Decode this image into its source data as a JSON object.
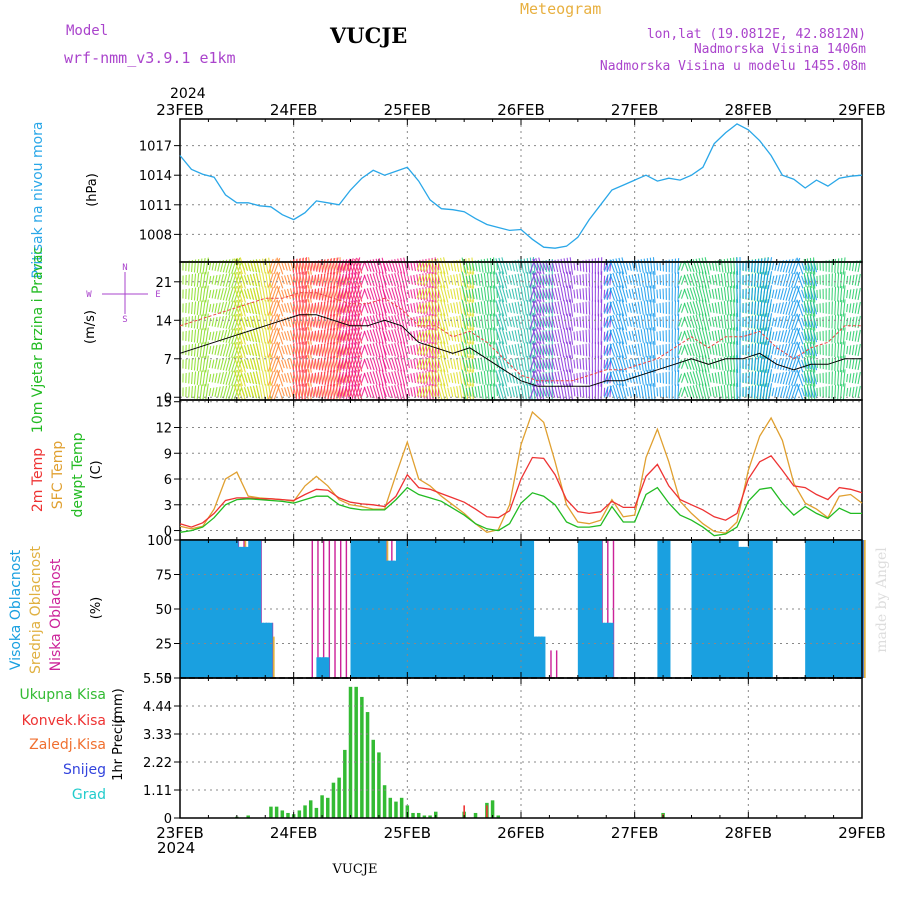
{
  "header": {
    "model_label": "Model",
    "model_name": "wrf-nmm_v3.9.1  e1km",
    "station": "VUCJE",
    "chart_title": "Meteogram",
    "lonlat": "lon,lat (19.0812E, 42.8812N)",
    "elevation": "Nadmorska Visina 1406m",
    "model_elevation": "Nadmorska Visina u modelu 1455.08m",
    "credit": "made by Angel",
    "footer_station": "VUCJE"
  },
  "colors": {
    "pressure": "#2aa7e8",
    "wind_label": "#22bb22",
    "temp2m": "#ee3333",
    "sfc": "#e0a030",
    "dewpt": "#22bb22",
    "high_cloud": "#1aa0e0",
    "mid_cloud": "#e0b040",
    "low_cloud": "#cc2299",
    "total_precip": "#33bb33",
    "conv_precip": "#ee3333",
    "frozen_precip": "#f07030",
    "snow": "#3344dd",
    "hail": "#22cccc",
    "title_purple": "#aa44cc",
    "title_orange": "#e8b040"
  },
  "time_axis": {
    "year_top": "2024",
    "year_bottom": "2024",
    "days": [
      "23FEB",
      "24FEB",
      "25FEB",
      "26FEB",
      "27FEB",
      "28FEB",
      "29FEB"
    ]
  },
  "chart_data": [
    {
      "type": "line",
      "panel": "pressure",
      "ylabel": "Pritisak na nivou mora",
      "unit": "(hPa)",
      "yticks": [
        1008,
        1011,
        1014,
        1017
      ],
      "ylim": [
        1005.2,
        1019.7
      ],
      "grid": true,
      "x_days": [
        0,
        0.1,
        0.2,
        0.3,
        0.4,
        0.5,
        0.6,
        0.7,
        0.8,
        0.9,
        1.0,
        1.1,
        1.2,
        1.3,
        1.4,
        1.5,
        1.6,
        1.7,
        1.8,
        1.9,
        2.0,
        2.1,
        2.2,
        2.3,
        2.4,
        2.5,
        2.6,
        2.7,
        2.8,
        2.9,
        3.0,
        3.1,
        3.2,
        3.3,
        3.4,
        3.5,
        3.6,
        3.7,
        3.8,
        3.9,
        4.0,
        4.1,
        4.2,
        4.3,
        4.4,
        4.5,
        4.6,
        4.7,
        4.8,
        4.9,
        5.0,
        5.1,
        5.2,
        5.3,
        5.4,
        5.5,
        5.6,
        5.7,
        5.8,
        5.9,
        6.0
      ],
      "series": [
        {
          "values": [
            1016.0,
            1014.6,
            1014.1,
            1013.8,
            1012.0,
            1011.2,
            1011.2,
            1010.9,
            1010.8,
            1010.0,
            1009.5,
            1010.2,
            1011.4,
            1011.2,
            1011.0,
            1012.5,
            1013.7,
            1014.5,
            1014.0,
            1014.4,
            1014.8,
            1013.4,
            1011.5,
            1010.6,
            1010.5,
            1010.3,
            1009.6,
            1009.0,
            1008.7,
            1008.4,
            1008.5,
            1007.5,
            1006.7,
            1006.6,
            1006.8,
            1007.7,
            1009.5,
            1011.0,
            1012.5,
            1013.0,
            1013.5,
            1014.0,
            1013.4,
            1013.7,
            1013.5,
            1014.0,
            1014.8,
            1017.2,
            1018.3,
            1019.2,
            1018.6,
            1017.5,
            1016.0,
            1014.0,
            1013.6,
            1012.7,
            1013.5,
            1012.9,
            1013.7,
            1013.9,
            1014.0
          ]
        }
      ]
    },
    {
      "type": "line",
      "panel": "wind",
      "ylabel": "10m Vjetar Brzina i Pravac",
      "unit": "(m/s)",
      "compass": {
        "n": "N",
        "s": "S",
        "e": "E",
        "w": "W"
      },
      "yticks": [
        0,
        7,
        14,
        21
      ],
      "ylim": [
        -0.5,
        24.6
      ],
      "grid": true,
      "x_days": [
        0,
        0.15,
        0.3,
        0.45,
        0.6,
        0.75,
        0.9,
        1.05,
        1.2,
        1.35,
        1.5,
        1.65,
        1.8,
        1.95,
        2.1,
        2.25,
        2.4,
        2.55,
        2.7,
        2.85,
        3.0,
        3.15,
        3.3,
        3.45,
        3.6,
        3.75,
        3.9,
        4.05,
        4.2,
        4.35,
        4.5,
        4.65,
        4.8,
        4.95,
        5.1,
        5.25,
        5.4,
        5.55,
        5.7,
        5.85,
        6.0
      ],
      "series": [
        {
          "name": "mean",
          "values": [
            8,
            9,
            10,
            11,
            12,
            13,
            14,
            15,
            15,
            14,
            13,
            13,
            14,
            13,
            10,
            9,
            8,
            9,
            7,
            5,
            3,
            2,
            2,
            2,
            2,
            3,
            3,
            4,
            5,
            6,
            7,
            6,
            7,
            7,
            8,
            6,
            5,
            6,
            6,
            7,
            7
          ]
        },
        {
          "name": "gust",
          "values": [
            13,
            14,
            15,
            16,
            17,
            18,
            18,
            19,
            19,
            18,
            17,
            17,
            18,
            16,
            13,
            13,
            11,
            12,
            10,
            7,
            4,
            3,
            3,
            3,
            4,
            5,
            5,
            6,
            7,
            9,
            11,
            9,
            11,
            11,
            12,
            9,
            7,
            9,
            10,
            13,
            13
          ]
        }
      ],
      "direction_bands": [
        {
          "from": 0.0,
          "to": 0.7,
          "color": "#88dd22"
        },
        {
          "from": 0.5,
          "to": 0.8,
          "color": "#dddd22"
        },
        {
          "from": 0.8,
          "to": 1.5,
          "color": "#ff8833"
        },
        {
          "from": 1.0,
          "to": 1.6,
          "color": "#ff3355"
        },
        {
          "from": 1.4,
          "to": 1.8,
          "color": "#ee1188"
        },
        {
          "from": 1.8,
          "to": 2.3,
          "color": "#ee1188"
        },
        {
          "from": 2.1,
          "to": 2.6,
          "color": "#dddd22"
        },
        {
          "from": 2.5,
          "to": 2.8,
          "color": "#22cc66"
        },
        {
          "from": 2.8,
          "to": 3.3,
          "color": "#22bbaa"
        },
        {
          "from": 3.1,
          "to": 3.8,
          "color": "#8833dd"
        },
        {
          "from": 3.75,
          "to": 4.4,
          "color": "#1199ee"
        },
        {
          "from": 4.4,
          "to": 5.2,
          "color": "#22cc66"
        },
        {
          "from": 4.9,
          "to": 5.6,
          "color": "#1199ee"
        },
        {
          "from": 5.5,
          "to": 6.0,
          "color": "#22cc66"
        }
      ]
    },
    {
      "type": "line",
      "panel": "temperature",
      "ylabel": [
        "2m Temp",
        "SFC Temp",
        "dewpt Temp"
      ],
      "unit": "(C)",
      "yticks": [
        0,
        3,
        6,
        9,
        12,
        15
      ],
      "ylim": [
        -1.1,
        15.2
      ],
      "grid": true,
      "x_days": [
        0,
        0.1,
        0.2,
        0.3,
        0.4,
        0.5,
        0.6,
        0.7,
        0.8,
        0.9,
        1.0,
        1.1,
        1.2,
        1.3,
        1.4,
        1.5,
        1.6,
        1.7,
        1.8,
        1.9,
        2.0,
        2.1,
        2.2,
        2.3,
        2.4,
        2.5,
        2.6,
        2.7,
        2.8,
        2.9,
        3.0,
        3.1,
        3.2,
        3.3,
        3.4,
        3.5,
        3.6,
        3.7,
        3.8,
        3.9,
        4.0,
        4.1,
        4.2,
        4.3,
        4.4,
        4.5,
        4.6,
        4.7,
        4.8,
        4.9,
        5.0,
        5.1,
        5.2,
        5.3,
        5.4,
        5.5,
        5.6,
        5.7,
        5.8,
        5.9,
        6.0
      ],
      "series": [
        {
          "name": "2m Temp",
          "values": [
            0.8,
            0.4,
            0.9,
            2.0,
            3.5,
            3.8,
            3.8,
            3.7,
            3.7,
            3.6,
            3.5,
            4.2,
            4.8,
            4.7,
            3.8,
            3.3,
            3.1,
            3.0,
            2.8,
            4.0,
            6.5,
            5.0,
            4.8,
            4.3,
            3.8,
            3.3,
            2.5,
            1.6,
            1.5,
            2.3,
            6.0,
            8.5,
            8.4,
            6.5,
            3.6,
            2.2,
            2.0,
            2.2,
            3.4,
            2.7,
            2.7,
            6.3,
            7.7,
            5.2,
            3.6,
            3.0,
            2.4,
            1.6,
            1.2,
            2.0,
            6.0,
            8.0,
            8.7,
            7.0,
            5.2,
            5.0,
            4.2,
            3.6,
            5.0,
            4.8,
            4.4
          ]
        },
        {
          "name": "SFC Temp",
          "values": [
            0.5,
            0.2,
            0.5,
            2.5,
            6.0,
            6.8,
            4.0,
            3.8,
            3.7,
            3.6,
            3.4,
            5.2,
            6.3,
            5.2,
            3.6,
            3.0,
            2.8,
            2.5,
            2.5,
            6.5,
            10.3,
            6.0,
            5.2,
            4.0,
            3.0,
            2.0,
            0.8,
            -0.2,
            0.1,
            3.0,
            10.0,
            13.8,
            12.6,
            8.0,
            3.0,
            1.0,
            0.8,
            1.2,
            3.6,
            1.6,
            1.8,
            8.5,
            11.8,
            8.0,
            3.4,
            2.0,
            0.8,
            -0.1,
            -0.3,
            1.0,
            7.0,
            11.0,
            13.1,
            10.5,
            5.5,
            3.2,
            2.5,
            1.5,
            4.0,
            4.2,
            3.2
          ]
        },
        {
          "name": "dewpt Temp",
          "values": [
            -0.2,
            0.0,
            0.4,
            1.5,
            3.0,
            3.6,
            3.7,
            3.6,
            3.5,
            3.4,
            3.2,
            3.6,
            4.0,
            4.0,
            3.0,
            2.6,
            2.4,
            2.4,
            2.4,
            3.6,
            5.0,
            4.2,
            3.8,
            3.4,
            2.6,
            1.8,
            0.8,
            0.2,
            0.0,
            0.8,
            3.2,
            4.4,
            4.0,
            3.0,
            1.0,
            0.4,
            0.4,
            0.6,
            2.8,
            1.0,
            1.0,
            4.2,
            5.0,
            3.2,
            1.8,
            1.2,
            0.4,
            -0.6,
            -0.4,
            0.4,
            3.4,
            4.8,
            5.0,
            3.2,
            1.8,
            2.8,
            2.0,
            1.4,
            2.6,
            2.0,
            2.0
          ]
        }
      ]
    },
    {
      "type": "bar",
      "panel": "cloud",
      "ylabel": [
        "Visoka Oblacnost",
        "Srednja Oblacnost",
        "Niska Oblacnost"
      ],
      "unit": "(%)",
      "yticks": [
        0,
        25,
        50,
        75,
        100
      ],
      "ylim": [
        0,
        100
      ],
      "grid": true,
      "x_days": [
        0.05,
        0.15,
        0.25,
        0.35,
        0.45,
        0.55,
        0.65,
        0.75,
        0.85,
        0.95,
        1.05,
        1.15,
        1.25,
        1.35,
        1.45,
        1.55,
        1.65,
        1.75,
        1.85,
        1.95,
        2.05,
        2.15,
        2.25,
        2.35,
        2.45,
        2.55,
        2.65,
        2.75,
        2.85,
        2.95,
        3.05,
        3.15,
        3.25,
        3.35,
        3.45,
        3.55,
        3.65,
        3.75,
        3.85,
        3.95,
        4.05,
        4.15,
        4.25,
        4.35,
        4.45,
        4.55,
        4.65,
        4.75,
        4.85,
        4.95,
        5.05,
        5.15,
        5.25,
        5.35,
        5.45,
        5.55,
        5.65,
        5.75,
        5.85,
        5.95
      ],
      "series": [
        {
          "name": "Visoka Oblacnost",
          "values": [
            100,
            100,
            100,
            100,
            100,
            95,
            100,
            40,
            0,
            0,
            0,
            0,
            15,
            0,
            0,
            100,
            100,
            100,
            85,
            100,
            100,
            100,
            100,
            100,
            100,
            100,
            100,
            100,
            100,
            100,
            100,
            30,
            0,
            0,
            0,
            100,
            100,
            40,
            0,
            0,
            0,
            0,
            100,
            0,
            0,
            100,
            100,
            100,
            100,
            95,
            100,
            100,
            0,
            0,
            0,
            100,
            100,
            100,
            100,
            100
          ]
        },
        {
          "name": "Srednja Oblacnost",
          "values": [
            100,
            100,
            0,
            100,
            0,
            100,
            0,
            30,
            0,
            0,
            0,
            0,
            0,
            0,
            0,
            100,
            0,
            100,
            0,
            0,
            0,
            0,
            0,
            100,
            0,
            100,
            100,
            0,
            0,
            0,
            0,
            0,
            0,
            0,
            0,
            0,
            0,
            0,
            0,
            0,
            0,
            0,
            0,
            0,
            0,
            0,
            0,
            0,
            0,
            0,
            0,
            0,
            0,
            0,
            0,
            0,
            40,
            0,
            0,
            100
          ]
        },
        {
          "name": "Niska Oblacnost",
          "values": [
            100,
            100,
            100,
            100,
            100,
            100,
            100,
            40,
            0,
            0,
            0,
            100,
            100,
            100,
            100,
            100,
            100,
            100,
            100,
            100,
            100,
            0,
            0,
            0,
            100,
            100,
            100,
            100,
            100,
            100,
            0,
            0,
            20,
            0,
            0,
            40,
            100,
            100,
            0,
            0,
            0,
            0,
            0,
            0,
            0,
            0,
            0,
            0,
            0,
            20,
            0,
            0,
            0,
            0,
            0,
            100,
            100,
            0,
            0,
            100
          ]
        }
      ]
    },
    {
      "type": "bar",
      "panel": "precipitation",
      "ylabel": "1hr Precip",
      "unit": "(mm)",
      "legend": [
        "Ukupna Kisa",
        "Konvek.Kisa",
        "Zaledj.Kisa",
        "Snijeg",
        "Grad"
      ],
      "yticks": [
        "0",
        "1.11",
        "2.22",
        "3.33",
        "4.44",
        "5.55"
      ],
      "ylim": [
        0,
        5.55
      ],
      "grid": true,
      "x_days": [
        0.5,
        0.6,
        0.8,
        0.85,
        0.9,
        0.95,
        1.0,
        1.05,
        1.1,
        1.15,
        1.2,
        1.25,
        1.3,
        1.35,
        1.4,
        1.45,
        1.5,
        1.55,
        1.6,
        1.65,
        1.7,
        1.75,
        1.8,
        1.85,
        1.9,
        1.95,
        2.0,
        2.05,
        2.1,
        2.15,
        2.2,
        2.25,
        2.5,
        2.6,
        2.7,
        2.75,
        2.8,
        4.25
      ],
      "series": [
        {
          "name": "Ukupna Kisa",
          "values": [
            0.05,
            0.1,
            0.45,
            0.45,
            0.3,
            0.2,
            0.15,
            0.3,
            0.5,
            0.7,
            0.4,
            0.9,
            0.8,
            1.4,
            1.6,
            2.7,
            5.2,
            5.2,
            4.8,
            4.2,
            3.1,
            2.6,
            1.3,
            0.8,
            0.65,
            0.8,
            0.5,
            0.2,
            0.2,
            0.1,
            0.1,
            0.25,
            0.25,
            0.2,
            0.6,
            0.7,
            0.1,
            0.2
          ]
        },
        {
          "name": "Konvek.Kisa",
          "values": [
            0,
            0,
            0,
            0,
            0,
            0,
            0,
            0,
            0,
            0,
            0,
            0,
            0,
            0,
            0,
            0,
            0,
            0,
            0,
            0,
            0,
            0,
            0,
            0,
            0,
            0,
            0,
            0,
            0,
            0,
            0,
            0,
            0.5,
            0,
            0.5,
            0,
            0,
            0.15
          ]
        }
      ]
    }
  ]
}
